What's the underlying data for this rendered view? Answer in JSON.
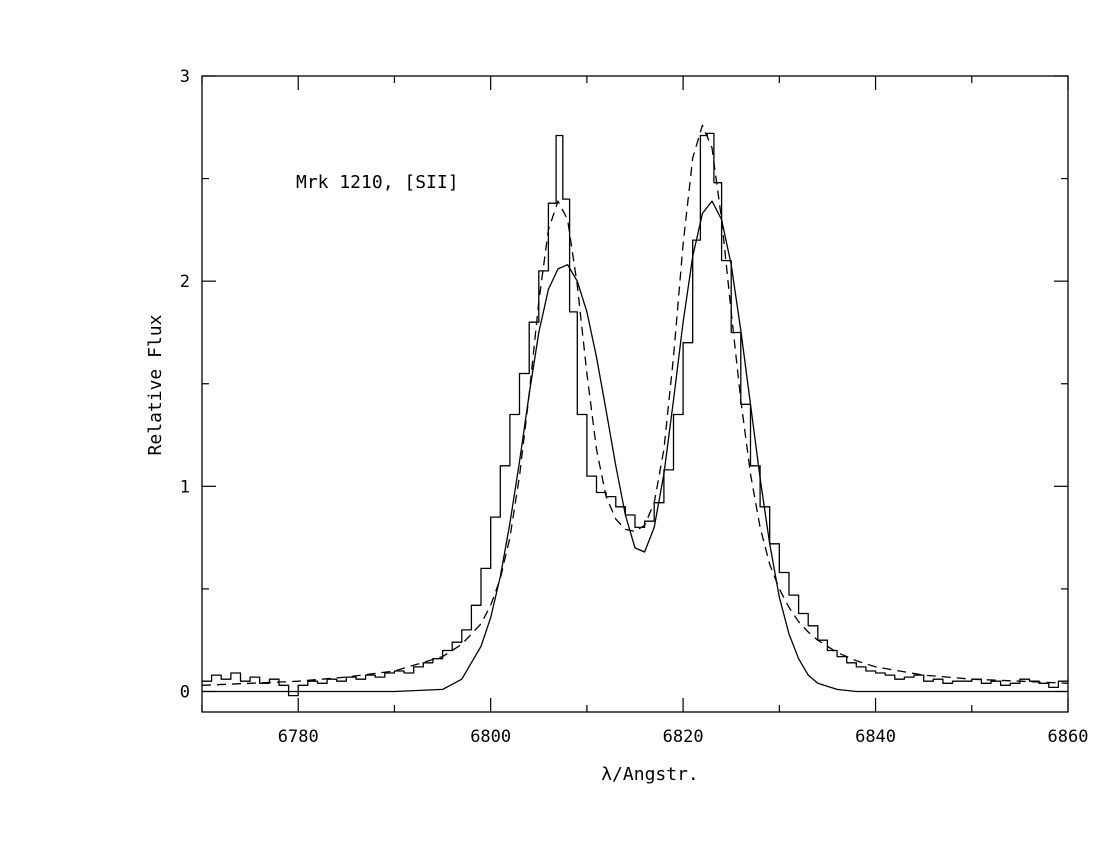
{
  "chart_data": {
    "type": "line",
    "title": "",
    "annotation": "Mrk 1210, [SII]",
    "xlabel": "λ/Angstr.",
    "ylabel": "Relative Flux",
    "xlim": [
      6770,
      6860
    ],
    "ylim": [
      -0.1,
      3
    ],
    "x_ticks_major": [
      6780,
      6800,
      6820,
      6840,
      6860
    ],
    "x_ticks_minor_step": 10,
    "y_ticks_major": [
      0,
      1,
      2,
      3
    ],
    "y_ticks_minor_step": 0.5,
    "grid": false,
    "legend": "none",
    "series": [
      {
        "style": "steps",
        "x": [
          6770,
          6771,
          6772,
          6773,
          6774,
          6775,
          6776,
          6777,
          6778,
          6779,
          6780,
          6781,
          6782,
          6783,
          6784,
          6785,
          6786,
          6787,
          6788,
          6789,
          6790,
          6791,
          6792,
          6793,
          6794,
          6795,
          6796,
          6797,
          6798,
          6799,
          6800,
          6801,
          6802,
          6803,
          6804,
          6805,
          6806,
          6806.8,
          6807.5,
          6808.2,
          6809,
          6810,
          6811,
          6812,
          6813,
          6814,
          6815,
          6816,
          6817,
          6818,
          6819,
          6820,
          6821,
          6821.8,
          6822.5,
          6823.2,
          6824,
          6825,
          6826,
          6827,
          6828,
          6829,
          6830,
          6831,
          6832,
          6833,
          6834,
          6835,
          6836,
          6837,
          6838,
          6839,
          6840,
          6841,
          6842,
          6843,
          6844,
          6845,
          6846,
          6847,
          6848,
          6849,
          6850,
          6851,
          6852,
          6853,
          6854,
          6855,
          6856,
          6857,
          6858,
          6859,
          6860
        ],
        "y": [
          0.05,
          0.08,
          0.06,
          0.09,
          0.05,
          0.07,
          0.04,
          0.06,
          0.03,
          -0.02,
          0.03,
          0.05,
          0.04,
          0.06,
          0.05,
          0.07,
          0.06,
          0.08,
          0.07,
          0.09,
          0.1,
          0.09,
          0.12,
          0.14,
          0.16,
          0.2,
          0.24,
          0.3,
          0.42,
          0.6,
          0.85,
          1.1,
          1.35,
          1.55,
          1.8,
          2.05,
          2.38,
          2.71,
          2.4,
          1.85,
          1.35,
          1.05,
          0.97,
          0.95,
          0.9,
          0.86,
          0.8,
          0.83,
          0.92,
          1.08,
          1.35,
          1.7,
          2.2,
          2.71,
          2.72,
          2.48,
          2.1,
          1.75,
          1.4,
          1.1,
          0.9,
          0.72,
          0.58,
          0.47,
          0.38,
          0.32,
          0.25,
          0.2,
          0.17,
          0.14,
          0.12,
          0.1,
          0.09,
          0.08,
          0.06,
          0.07,
          0.08,
          0.05,
          0.06,
          0.04,
          0.05,
          0.05,
          0.06,
          0.04,
          0.05,
          0.03,
          0.04,
          0.06,
          0.05,
          0.04,
          0.02,
          0.05,
          0.06
        ]
      },
      {
        "style": "solid",
        "x": [
          6770,
          6775,
          6780,
          6785,
          6790,
          6795,
          6797,
          6799,
          6800,
          6801,
          6802,
          6803,
          6804,
          6805,
          6806,
          6807,
          6808,
          6809,
          6810,
          6811,
          6812,
          6813,
          6814,
          6815,
          6816,
          6817,
          6818,
          6819,
          6820,
          6821,
          6822,
          6823,
          6824,
          6825,
          6826,
          6827,
          6828,
          6829,
          6830,
          6831,
          6832,
          6833,
          6834,
          6836,
          6838,
          6840,
          6845,
          6850,
          6855,
          6860
        ],
        "y": [
          0,
          0,
          0,
          0,
          0,
          0.01,
          0.06,
          0.22,
          0.36,
          0.56,
          0.82,
          1.12,
          1.45,
          1.75,
          1.96,
          2.06,
          2.08,
          2.0,
          1.85,
          1.63,
          1.37,
          1.1,
          0.86,
          0.7,
          0.68,
          0.8,
          1.06,
          1.42,
          1.8,
          2.12,
          2.33,
          2.39,
          2.3,
          2.08,
          1.76,
          1.4,
          1.04,
          0.72,
          0.46,
          0.28,
          0.16,
          0.08,
          0.04,
          0.01,
          0,
          0,
          0,
          0,
          0,
          0
        ]
      },
      {
        "style": "dashed",
        "x": [
          6770,
          6775,
          6780,
          6785,
          6790,
          6795,
          6797,
          6799,
          6800,
          6801,
          6802,
          6803,
          6804,
          6805,
          6806,
          6807,
          6808,
          6809,
          6810,
          6811,
          6812,
          6813,
          6814,
          6815,
          6816,
          6817,
          6818,
          6819,
          6820,
          6821,
          6822,
          6823,
          6824,
          6825,
          6826,
          6827,
          6828,
          6829,
          6830,
          6831,
          6832,
          6833,
          6834,
          6836,
          6838,
          6840,
          6845,
          6850,
          6855,
          6860
        ],
        "y": [
          0.03,
          0.04,
          0.05,
          0.07,
          0.1,
          0.17,
          0.23,
          0.33,
          0.42,
          0.55,
          0.75,
          1.05,
          1.45,
          1.9,
          2.25,
          2.39,
          2.3,
          1.98,
          1.55,
          1.18,
          0.95,
          0.84,
          0.79,
          0.78,
          0.81,
          0.92,
          1.18,
          1.63,
          2.18,
          2.6,
          2.76,
          2.65,
          2.3,
          1.85,
          1.42,
          1.06,
          0.8,
          0.62,
          0.5,
          0.41,
          0.34,
          0.29,
          0.25,
          0.19,
          0.15,
          0.12,
          0.08,
          0.06,
          0.05,
          0.04
        ]
      }
    ]
  }
}
